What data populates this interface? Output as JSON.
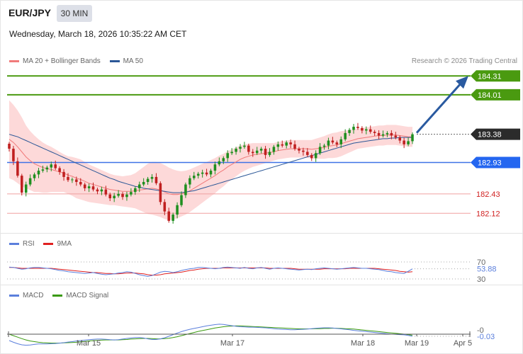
{
  "header": {
    "symbol": "EUR/JPY",
    "interval": "30 MIN",
    "datetime": "Wednesday, March 18, 2026 10:35:22 AM CET",
    "source": "Research © 2026 Trading Central"
  },
  "legends": {
    "price": [
      {
        "name": "MA 20 + Bollinger Bands",
        "color": "#f07a7a"
      },
      {
        "name": "MA 50",
        "color": "#2b5797"
      }
    ],
    "rsi": [
      {
        "name": "RSI",
        "color": "#5b7fdc"
      },
      {
        "name": "9MA",
        "color": "#e02020"
      }
    ],
    "macd": [
      {
        "name": "MACD",
        "color": "#5b7fdc"
      },
      {
        "name": "MACD Signal",
        "color": "#3a9a10"
      }
    ]
  },
  "colors": {
    "up_candle": "#1f8f1f",
    "down_candle": "#c02020",
    "bollinger_fill": "#fdd9d9",
    "target_line": "#4a9a10",
    "pivot_line": "#3f72e6",
    "support_line": "#f0a0a0",
    "arrow": "#2a5aa0"
  },
  "chart_data": {
    "type": "candlestick",
    "x_ticks": [
      "Mar 15",
      "Mar 17",
      "Mar 18",
      "Mar 19",
      "Apr 5"
    ],
    "ylim": [
      181.85,
      184.42
    ],
    "current_price": "183.38",
    "levels": [
      {
        "label": "184.31",
        "value": 184.31,
        "role": "target"
      },
      {
        "label": "184.01",
        "value": 184.01,
        "role": "target"
      },
      {
        "label": "183.38",
        "value": 183.38,
        "role": "current"
      },
      {
        "label": "182.93",
        "value": 182.93,
        "role": "pivot"
      },
      {
        "label": "182.43",
        "value": 182.43,
        "role": "support"
      },
      {
        "label": "182.12",
        "value": 182.12,
        "role": "support"
      }
    ],
    "close": [
      183.15,
      182.95,
      182.72,
      182.45,
      182.58,
      182.68,
      182.74,
      182.8,
      182.82,
      182.85,
      182.9,
      182.84,
      182.78,
      182.7,
      182.65,
      182.66,
      182.62,
      182.58,
      182.52,
      182.55,
      182.5,
      182.47,
      182.5,
      182.42,
      182.36,
      182.4,
      182.43,
      182.38,
      182.42,
      182.46,
      182.52,
      182.58,
      182.62,
      182.67,
      182.7,
      182.6,
      182.3,
      182.15,
      182.0,
      182.1,
      182.25,
      182.41,
      182.58,
      182.68,
      182.72,
      182.75,
      182.77,
      182.74,
      182.8,
      182.9,
      182.95,
      183.0,
      183.08,
      183.1,
      183.15,
      183.18,
      183.2,
      183.1,
      183.08,
      183.12,
      183.15,
      183.05,
      183.1,
      183.18,
      183.22,
      183.2,
      183.25,
      183.22,
      183.15,
      183.12,
      183.1,
      183.05,
      183.0,
      183.08,
      183.18,
      183.2,
      183.28,
      183.25,
      183.22,
      183.3,
      183.4,
      183.45,
      183.5,
      183.48,
      183.44,
      183.46,
      183.42,
      183.4,
      183.36,
      183.38,
      183.4,
      183.36,
      183.33,
      183.28,
      183.22,
      183.27,
      183.38
    ],
    "ma20": [
      183.3,
      183.25,
      183.18,
      183.1,
      183.02,
      182.96,
      182.91,
      182.88,
      182.85,
      182.83,
      182.82,
      182.8,
      182.78,
      182.76,
      182.73,
      182.71,
      182.68,
      182.66,
      182.63,
      182.6,
      182.58,
      182.56,
      182.54,
      182.52,
      182.5,
      182.49,
      182.48,
      182.47,
      182.47,
      182.47,
      182.48,
      182.49,
      182.5,
      182.51,
      182.52,
      182.51,
      182.49,
      182.46,
      182.43,
      182.42,
      182.42,
      182.43,
      182.45,
      182.48,
      182.52,
      182.56,
      182.6,
      182.64,
      182.68,
      182.72,
      182.77,
      182.81,
      182.86,
      182.9,
      182.94,
      182.98,
      183.01,
      183.03,
      183.05,
      183.06,
      183.07,
      183.08,
      183.09,
      183.1,
      183.12,
      183.13,
      183.14,
      183.15,
      183.15,
      183.15,
      183.15,
      183.15,
      183.14,
      183.15,
      183.16,
      183.17,
      183.19,
      183.2,
      183.21,
      183.23,
      183.25,
      183.27,
      183.29,
      183.31,
      183.32,
      183.33,
      183.34,
      183.35,
      183.36,
      183.36,
      183.37,
      183.37,
      183.37,
      183.36,
      183.35,
      183.34,
      183.34
    ],
    "ma50": [
      183.38,
      183.36,
      183.34,
      183.31,
      183.28,
      183.25,
      183.22,
      183.19,
      183.16,
      183.13,
      183.1,
      183.07,
      183.04,
      183.01,
      182.98,
      182.95,
      182.92,
      182.89,
      182.86,
      182.83,
      182.8,
      182.77,
      182.74,
      182.71,
      182.68,
      182.66,
      182.63,
      182.61,
      182.59,
      182.57,
      182.55,
      182.54,
      182.52,
      182.51,
      182.5,
      182.49,
      182.48,
      182.47,
      182.46,
      182.45,
      182.45,
      182.45,
      182.46,
      182.47,
      182.48,
      182.5,
      182.52,
      182.54,
      182.56,
      182.58,
      182.6,
      182.62,
      182.64,
      182.66,
      182.68,
      182.7,
      182.72,
      182.74,
      182.76,
      182.78,
      182.8,
      182.82,
      182.84,
      182.86,
      182.88,
      182.9,
      182.92,
      182.94,
      182.96,
      182.98,
      183.0,
      183.02,
      183.04,
      183.06,
      183.08,
      183.1,
      183.12,
      183.14,
      183.16,
      183.18,
      183.2,
      183.22,
      183.24,
      183.25,
      183.26,
      183.27,
      183.28,
      183.29,
      183.3,
      183.31,
      183.31,
      183.32,
      183.32,
      183.33,
      183.33,
      183.33,
      183.33
    ],
    "bb_width": [
      0.62,
      0.6,
      0.58,
      0.55,
      0.5,
      0.47,
      0.45,
      0.42,
      0.4,
      0.38,
      0.36,
      0.34,
      0.32,
      0.3,
      0.3,
      0.31,
      0.32,
      0.32,
      0.31,
      0.3,
      0.29,
      0.28,
      0.27,
      0.26,
      0.25,
      0.24,
      0.24,
      0.24,
      0.25,
      0.26,
      0.28,
      0.32,
      0.36,
      0.4,
      0.42,
      0.43,
      0.43,
      0.43,
      0.42,
      0.4,
      0.38,
      0.36,
      0.35,
      0.34,
      0.33,
      0.32,
      0.31,
      0.3,
      0.29,
      0.28,
      0.27,
      0.26,
      0.25,
      0.24,
      0.23,
      0.22,
      0.21,
      0.2,
      0.19,
      0.18,
      0.17,
      0.16,
      0.15,
      0.14,
      0.14,
      0.14,
      0.14,
      0.14,
      0.14,
      0.14,
      0.14,
      0.14,
      0.15,
      0.16,
      0.17,
      0.18,
      0.19,
      0.2,
      0.2,
      0.2,
      0.19,
      0.18,
      0.17,
      0.16,
      0.16,
      0.16,
      0.16,
      0.16,
      0.16,
      0.16,
      0.16,
      0.16,
      0.16,
      0.16,
      0.16,
      0.16,
      0.16
    ],
    "rsi": {
      "ylim": [
        20,
        80
      ],
      "levels": [
        70,
        30
      ],
      "current_label": "53.88",
      "level_labels": [
        "70",
        "30"
      ],
      "rsi": [
        58,
        57,
        55,
        53,
        54,
        56,
        57,
        57,
        56,
        55,
        54,
        52,
        50,
        49,
        47,
        46,
        45,
        44,
        43,
        44,
        45,
        43,
        41,
        40,
        41,
        42,
        44,
        45,
        47,
        46,
        43,
        40,
        38,
        36,
        38,
        42,
        46,
        48,
        47,
        45,
        47,
        50,
        52,
        54,
        55,
        57,
        57,
        56,
        55,
        54,
        55,
        57,
        58,
        57,
        56,
        55,
        57,
        55,
        54,
        56,
        57,
        55,
        53,
        55,
        56,
        55,
        54,
        53,
        52,
        51,
        52,
        53,
        52,
        54,
        55,
        56,
        55,
        54,
        53,
        54,
        55,
        56,
        57,
        56,
        55,
        55,
        54,
        53,
        52,
        50,
        48,
        47,
        45,
        44,
        43,
        48,
        53.88
      ],
      "ma9": [
        57,
        57,
        56,
        55,
        55,
        55,
        55,
        55,
        55,
        55,
        55,
        54,
        53,
        52,
        51,
        50,
        49,
        48,
        47,
        46,
        45,
        45,
        44,
        43,
        43,
        42,
        42,
        43,
        44,
        44,
        44,
        43,
        42,
        40,
        39,
        39,
        40,
        42,
        43,
        44,
        45,
        46,
        48,
        50,
        51,
        53,
        54,
        55,
        55,
        55,
        55,
        56,
        56,
        56,
        56,
        56,
        56,
        56,
        56,
        56,
        56,
        56,
        55,
        55,
        55,
        55,
        55,
        55,
        54,
        53,
        53,
        53,
        53,
        53,
        53,
        54,
        54,
        54,
        54,
        54,
        54,
        55,
        55,
        55,
        55,
        55,
        55,
        55,
        54,
        53,
        52,
        51,
        50,
        48,
        47,
        46,
        47
      ]
    },
    "macd": {
      "ylim": [
        -0.09,
        0.04
      ],
      "current_label": "-0.03",
      "zero_label": "-0",
      "macd": [
        -0.05,
        -0.058,
        -0.065,
        -0.07,
        -0.072,
        -0.071,
        -0.068,
        -0.066,
        -0.066,
        -0.066,
        -0.065,
        -0.064,
        -0.062,
        -0.06,
        -0.057,
        -0.055,
        -0.052,
        -0.05,
        -0.048,
        -0.046,
        -0.044,
        -0.043,
        -0.043,
        -0.044,
        -0.046,
        -0.047,
        -0.046,
        -0.043,
        -0.04,
        -0.038,
        -0.036,
        -0.036,
        -0.038,
        -0.042,
        -0.045,
        -0.045,
        -0.042,
        -0.037,
        -0.03,
        -0.022,
        -0.015,
        -0.008,
        -0.002,
        0.003,
        0.007,
        0.011,
        0.015,
        0.019,
        0.022,
        0.025,
        0.027,
        0.026,
        0.023,
        0.02,
        0.017,
        0.015,
        0.014,
        0.013,
        0.013,
        0.012,
        0.011,
        0.01,
        0.008,
        0.006,
        0.004,
        0.003,
        0.002,
        0.001,
        0.001,
        0.002,
        0.003,
        0.004,
        0.006,
        0.008,
        0.009,
        0.01,
        0.01,
        0.009,
        0.007,
        0.005,
        0.003,
        0.001,
        -0.002,
        -0.004,
        -0.006,
        -0.008,
        -0.01,
        -0.012,
        -0.014,
        -0.016,
        -0.018,
        -0.02,
        -0.021,
        -0.022,
        -0.023,
        -0.026,
        -0.03
      ],
      "signal": [
        -0.02,
        -0.027,
        -0.034,
        -0.041,
        -0.047,
        -0.052,
        -0.055,
        -0.058,
        -0.06,
        -0.061,
        -0.062,
        -0.062,
        -0.062,
        -0.061,
        -0.06,
        -0.059,
        -0.058,
        -0.056,
        -0.054,
        -0.052,
        -0.05,
        -0.049,
        -0.048,
        -0.047,
        -0.047,
        -0.047,
        -0.047,
        -0.046,
        -0.045,
        -0.043,
        -0.042,
        -0.041,
        -0.04,
        -0.04,
        -0.041,
        -0.042,
        -0.042,
        -0.041,
        -0.039,
        -0.036,
        -0.032,
        -0.027,
        -0.022,
        -0.017,
        -0.012,
        -0.007,
        -0.003,
        0.001,
        0.005,
        0.009,
        0.012,
        0.015,
        0.017,
        0.018,
        0.019,
        0.019,
        0.018,
        0.017,
        0.016,
        0.015,
        0.014,
        0.013,
        0.012,
        0.011,
        0.01,
        0.009,
        0.008,
        0.007,
        0.006,
        0.005,
        0.005,
        0.005,
        0.005,
        0.006,
        0.006,
        0.007,
        0.007,
        0.008,
        0.008,
        0.007,
        0.006,
        0.005,
        0.004,
        0.002,
        0.0,
        -0.002,
        -0.004,
        -0.006,
        -0.008,
        -0.01,
        -0.012,
        -0.014,
        -0.016,
        -0.018,
        -0.02,
        -0.022,
        -0.025
      ]
    }
  }
}
